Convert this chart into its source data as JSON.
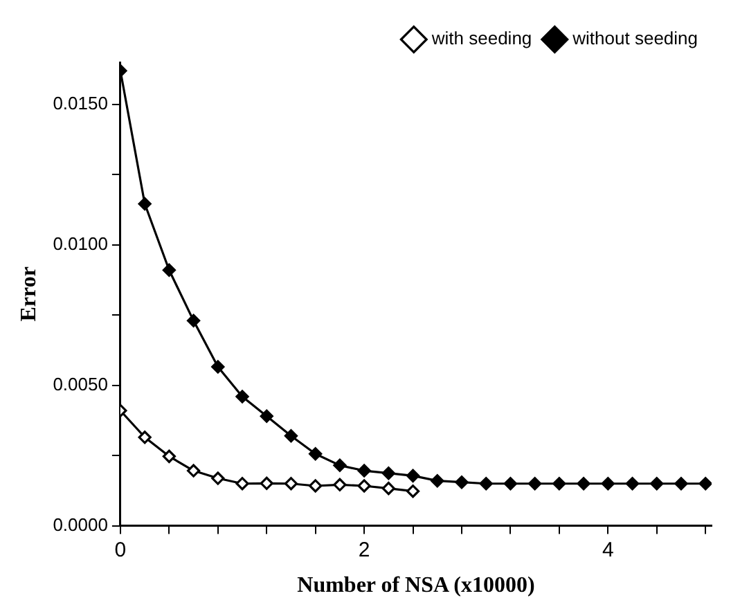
{
  "chart_data": {
    "type": "line",
    "xlabel": "Number of NSA (x10000)",
    "ylabel": "Error",
    "x": [
      0,
      0.2,
      0.4,
      0.6,
      0.8,
      1.0,
      1.2,
      1.4,
      1.6,
      1.8,
      2.0,
      2.2,
      2.4,
      2.6,
      2.8,
      3.0,
      3.2,
      3.4,
      3.6,
      3.8,
      4.0,
      4.2,
      4.4,
      4.6,
      4.8
    ],
    "series": [
      {
        "name": "with seeding",
        "color": "#000000",
        "values": [
          0.0041,
          0.00315,
          0.00247,
          0.00196,
          0.00169,
          0.0015,
          0.00151,
          0.0015,
          0.00142,
          0.00146,
          0.00142,
          0.00133,
          0.00123,
          null,
          null,
          null,
          null,
          null,
          null,
          null,
          null,
          null,
          null,
          null,
          null
        ]
      },
      {
        "name": "without seeding",
        "color": "#000000",
        "values": [
          0.0162,
          0.01146,
          0.0091,
          0.0073,
          0.00566,
          0.0046,
          0.0039,
          0.0032,
          0.00256,
          0.00215,
          0.00196,
          0.00187,
          0.00178,
          0.0016,
          0.00155,
          0.0015,
          0.0015,
          0.0015,
          0.0015,
          0.0015,
          0.0015,
          0.0015,
          0.0015,
          0.0015,
          0.0015
        ]
      }
    ],
    "xlim": [
      0,
      4.85
    ],
    "ylim": [
      0,
      0.0165
    ],
    "xticks": [
      0,
      {
        "value": 0.4,
        "label": null
      },
      {
        "value": 0.8,
        "label": null
      },
      {
        "value": 1.2,
        "label": null
      },
      {
        "value": 1.6,
        "label": null
      },
      2,
      {
        "value": 2.4,
        "label": null
      },
      {
        "value": 2.8,
        "label": null
      },
      {
        "value": 3.2,
        "label": null
      },
      {
        "value": 3.6,
        "label": null
      },
      4,
      {
        "value": 4.4,
        "label": null
      },
      {
        "value": 4.8,
        "label": null
      }
    ],
    "yticks": [
      {
        "value": 0,
        "label": "0.0000"
      },
      {
        "value": 0.0025,
        "label": null
      },
      {
        "value": 0.005,
        "label": "0.0050"
      },
      {
        "value": 0.0075,
        "label": null
      },
      {
        "value": 0.01,
        "label": "0.0100"
      },
      {
        "value": 0.0125,
        "label": null
      },
      {
        "value": 0.015,
        "label": "0.0150"
      }
    ],
    "grid": false,
    "legend": "top right",
    "marker": "diamond",
    "line_style": "solid"
  }
}
